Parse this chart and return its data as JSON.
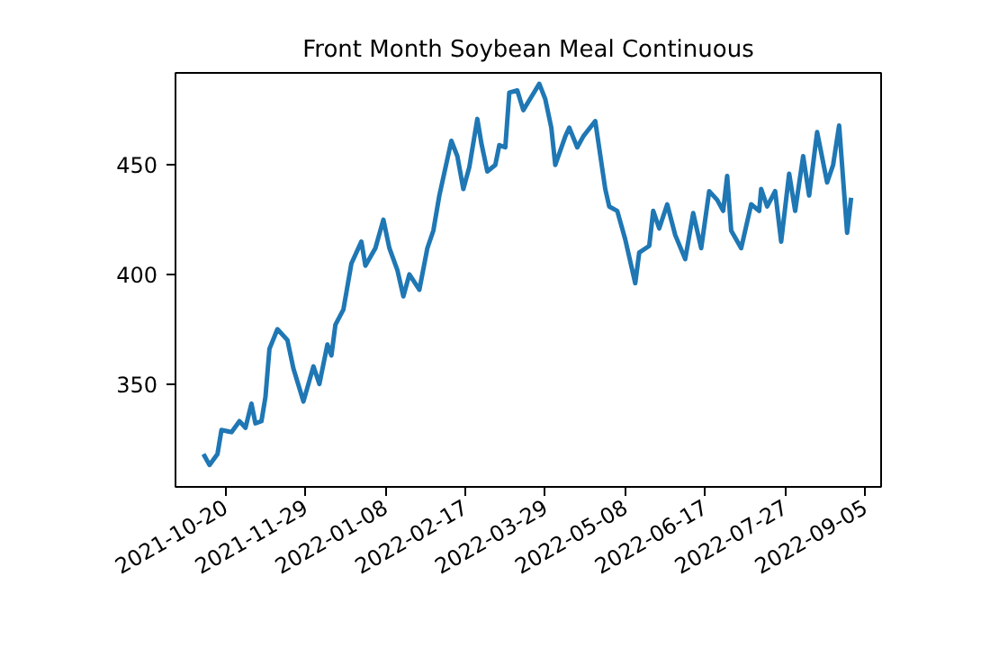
{
  "chart_data": {
    "type": "line",
    "title": "Front Month Soybean Meal Continuous",
    "x": [
      "2021-10-09",
      "2021-10-12",
      "2021-10-16",
      "2021-10-18",
      "2021-10-23",
      "2021-10-27",
      "2021-10-30",
      "2021-11-02",
      "2021-11-04",
      "2021-11-07",
      "2021-11-09",
      "2021-11-11",
      "2021-11-15",
      "2021-11-20",
      "2021-11-23",
      "2021-11-28",
      "2021-12-03",
      "2021-12-06",
      "2021-12-10",
      "2021-12-12",
      "2021-12-14",
      "2021-12-18",
      "2021-12-22",
      "2021-12-27",
      "2021-12-29",
      "2022-01-03",
      "2022-01-07",
      "2022-01-10",
      "2022-01-14",
      "2022-01-17",
      "2022-01-20",
      "2022-01-25",
      "2022-01-29",
      "2022-02-01",
      "2022-02-04",
      "2022-02-10",
      "2022-02-13",
      "2022-02-16",
      "2022-02-19",
      "2022-02-23",
      "2022-02-25",
      "2022-02-28",
      "2022-03-04",
      "2022-03-06",
      "2022-03-09",
      "2022-03-11",
      "2022-03-15",
      "2022-03-18",
      "2022-03-22",
      "2022-03-26",
      "2022-03-29",
      "2022-04-01",
      "2022-04-03",
      "2022-04-08",
      "2022-04-10",
      "2022-04-14",
      "2022-04-17",
      "2022-04-23",
      "2022-04-28",
      "2022-04-30",
      "2022-05-04",
      "2022-05-08",
      "2022-05-13",
      "2022-05-15",
      "2022-05-20",
      "2022-05-22",
      "2022-05-25",
      "2022-05-29",
      "2022-06-02",
      "2022-06-07",
      "2022-06-11",
      "2022-06-13",
      "2022-06-15",
      "2022-06-19",
      "2022-06-23",
      "2022-06-26",
      "2022-06-28",
      "2022-06-30",
      "2022-07-05",
      "2022-07-10",
      "2022-07-14",
      "2022-07-15",
      "2022-07-18",
      "2022-07-22",
      "2022-07-25",
      "2022-07-29",
      "2022-08-01",
      "2022-08-05",
      "2022-08-08",
      "2022-08-12",
      "2022-08-17",
      "2022-08-20",
      "2022-08-23",
      "2022-08-27",
      "2022-08-29"
    ],
    "series": [
      {
        "color": "#1f77b4",
        "values": [
          318,
          313,
          318,
          329,
          328,
          333,
          330,
          341,
          332,
          333,
          344,
          366,
          375,
          370,
          357,
          342,
          358,
          350,
          368,
          363,
          377,
          384,
          405,
          415,
          404,
          412,
          425,
          412,
          402,
          390,
          400,
          393,
          412,
          420,
          436,
          461,
          454,
          439,
          449,
          471,
          460,
          447,
          450,
          459,
          458,
          483,
          484,
          475,
          481,
          487,
          480,
          467,
          450,
          463,
          467,
          458,
          463,
          470,
          439,
          431,
          429,
          416,
          396,
          410,
          413,
          429,
          421,
          432,
          418,
          407,
          428,
          420,
          412,
          438,
          434,
          429,
          445,
          420,
          412,
          432,
          429,
          439,
          431,
          438,
          415,
          446,
          429,
          454,
          436,
          465,
          442,
          450,
          468,
          419,
          435
        ]
      }
    ],
    "xlim": [
      "2021-09-25",
      "2022-09-13"
    ],
    "ylim": [
      303,
      492
    ],
    "xticks": [
      "2021-10-20",
      "2021-11-29",
      "2022-01-08",
      "2022-02-17",
      "2022-03-29",
      "2022-05-08",
      "2022-06-17",
      "2022-07-27",
      "2022-09-05"
    ],
    "yticks": [
      350,
      400,
      450
    ],
    "grid": false,
    "marker": "none",
    "line_style": "solid"
  }
}
